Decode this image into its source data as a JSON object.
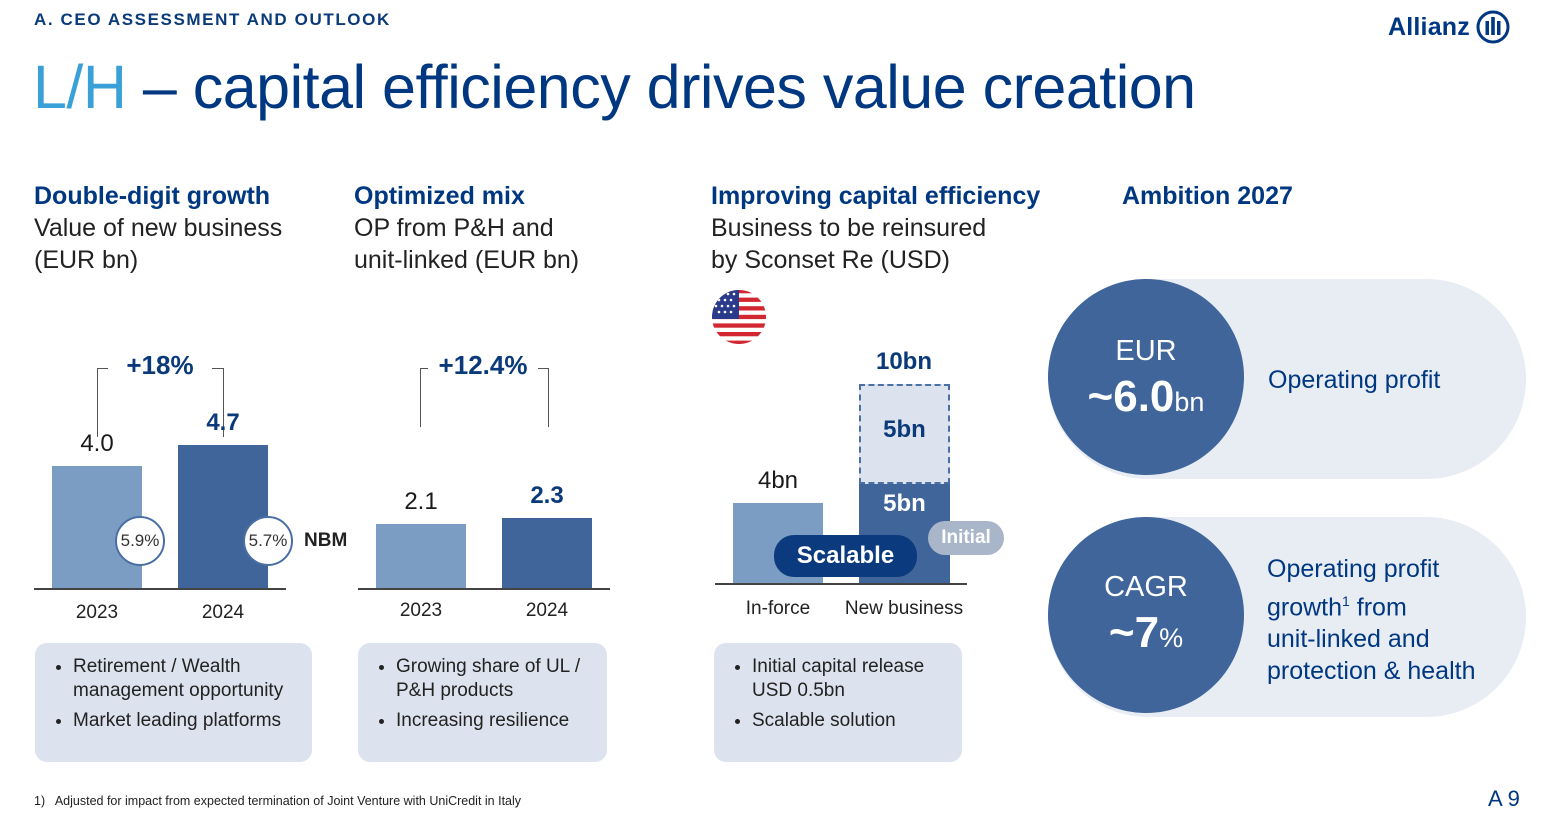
{
  "section_label": "A. CEO ASSESSMENT AND OUTLOOK",
  "logo": {
    "text": "Allianz"
  },
  "title": {
    "highlight": "L/H",
    "rest": " – capital efficiency drives value creation"
  },
  "col1": {
    "heading": "Double-digit growth",
    "sub1": "Value of new business",
    "sub2": "(EUR bn)",
    "growth": "+18%",
    "nbm_label": "NBM",
    "bullets": [
      "Retirement / Wealth management opportunity",
      "Market leading platforms"
    ]
  },
  "col2": {
    "heading": "Optimized mix",
    "sub1": "OP from P&H and",
    "sub2": "unit-linked (EUR bn)",
    "growth": "+12.4%",
    "bullets": [
      "Growing share of UL / P&H products",
      "Increasing resilience"
    ]
  },
  "col3": {
    "heading": "Improving capital efficiency",
    "sub1": "Business to be reinsured",
    "sub2": "by Sconset Re (USD)",
    "flag_icon": "us-flag-icon",
    "scalable_tag": "Scalable",
    "initial_tag": "Initial",
    "bullets": [
      "Initial capital release USD 0.5bn",
      "Scalable solution"
    ]
  },
  "col4": {
    "heading": "Ambition 2027",
    "item1": {
      "top": "EUR",
      "value": "~6.0",
      "unit": "bn",
      "label": "Operating profit"
    },
    "item2": {
      "top": "CAGR",
      "value": "~7",
      "unit": "%",
      "label_a": "Operating profit",
      "label_b": "growth",
      "sup": "1",
      "label_c": " from",
      "label_d": "unit-linked and",
      "label_e": "protection & health"
    }
  },
  "chart_data": [
    {
      "type": "bar",
      "categories": [
        "2023",
        "2024"
      ],
      "values": [
        4.0,
        4.7
      ],
      "value_labels": [
        "4.0",
        "4.7"
      ],
      "nbm": [
        "5.9%",
        "5.7%"
      ],
      "ylim": [
        0,
        5
      ]
    },
    {
      "type": "bar",
      "categories": [
        "2023",
        "2024"
      ],
      "values": [
        2.1,
        2.3
      ],
      "value_labels": [
        "2.1",
        "2.3"
      ],
      "ylim": [
        0,
        5
      ]
    },
    {
      "type": "bar",
      "categories": [
        "In-force",
        "New business"
      ],
      "values": [
        4,
        10
      ],
      "value_labels": [
        "4bn",
        "10bn"
      ],
      "stack": {
        "initial": 5,
        "initial_label": "5bn",
        "scalable": 5,
        "scalable_label": "5bn"
      },
      "ylim": [
        0,
        10
      ]
    }
  ],
  "footnote": "1)   Adjusted for impact from expected termination of Joint Venture with UniCredit in Italy",
  "page_number": "A 9",
  "colors": {
    "brand": "#003781",
    "accent": "#3aa0d8",
    "bar_light": "#7c9dc3",
    "bar_dark": "#3f659b"
  }
}
